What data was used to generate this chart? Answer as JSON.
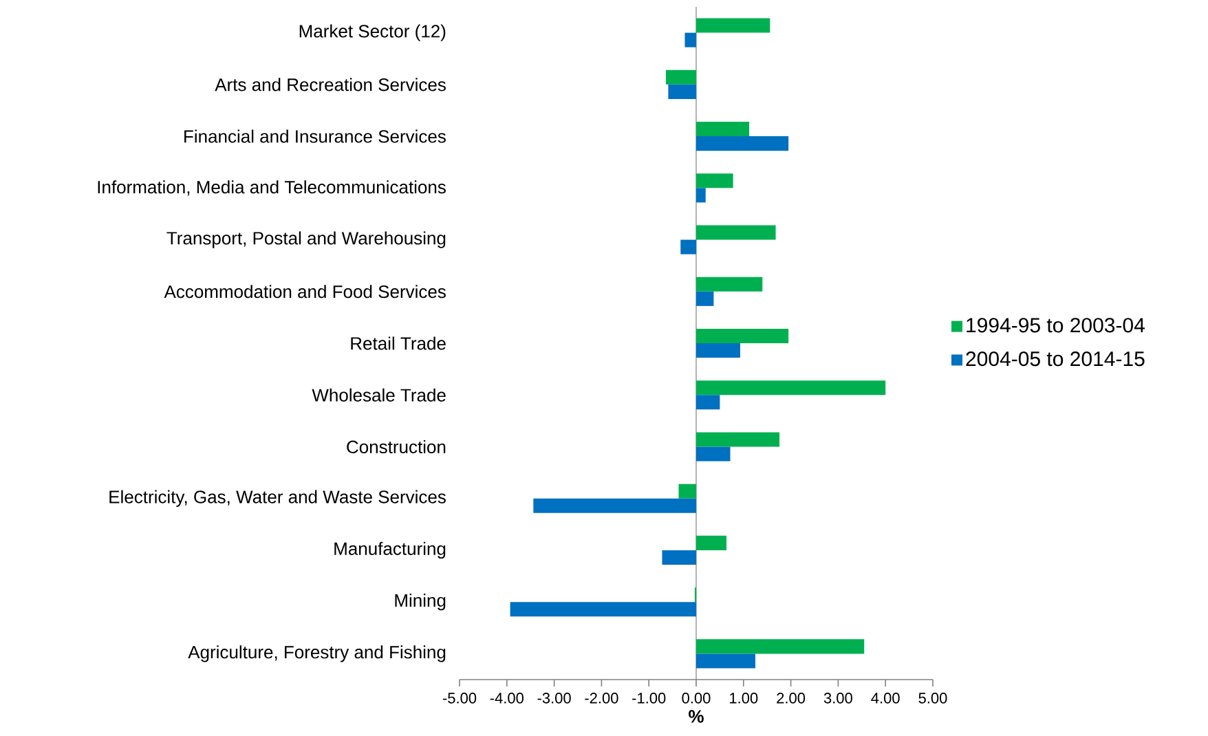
{
  "chart_data": {
    "type": "bar",
    "orientation": "horizontal",
    "xlabel": "%",
    "categories": [
      "Market Sector (12)",
      "Arts and Recreation Services",
      "Financial and Insurance Services",
      "Information, Media and Telecommunications",
      "Transport, Postal and Warehousing",
      "Accommodation and Food Services",
      "Retail Trade",
      "Wholesale Trade",
      "Construction",
      "Electricity, Gas, Water and Waste Services",
      "Manufacturing",
      "Mining",
      "Agriculture, Forestry and Fishing"
    ],
    "series": [
      {
        "name": "1994-95 to 2003-04",
        "color": "#00b050",
        "values": [
          1.56,
          -0.64,
          1.12,
          0.78,
          1.68,
          1.4,
          1.95,
          4.0,
          1.76,
          -0.37,
          0.64,
          -0.03,
          3.55
        ]
      },
      {
        "name": "2004-05 to 2014-15",
        "color": "#0070c0",
        "values": [
          -0.24,
          -0.59,
          1.95,
          0.2,
          -0.33,
          0.37,
          0.93,
          0.5,
          0.72,
          -3.44,
          -0.72,
          -3.93,
          1.25
        ]
      }
    ],
    "xlim": [
      -5,
      5
    ],
    "xticks": [
      {
        "value": -5,
        "label": "-5.00"
      },
      {
        "value": -4,
        "label": "-4.00"
      },
      {
        "value": -3,
        "label": "-3.00"
      },
      {
        "value": -2,
        "label": "-2.00"
      },
      {
        "value": -1,
        "label": "-1.00"
      },
      {
        "value": 0,
        "label": "0.00"
      },
      {
        "value": 1,
        "label": "1.00"
      },
      {
        "value": 2,
        "label": "2.00"
      },
      {
        "value": 3,
        "label": "3.00"
      },
      {
        "value": 4,
        "label": "4.00"
      },
      {
        "value": 5,
        "label": "5.00"
      }
    ],
    "legend": "right"
  }
}
